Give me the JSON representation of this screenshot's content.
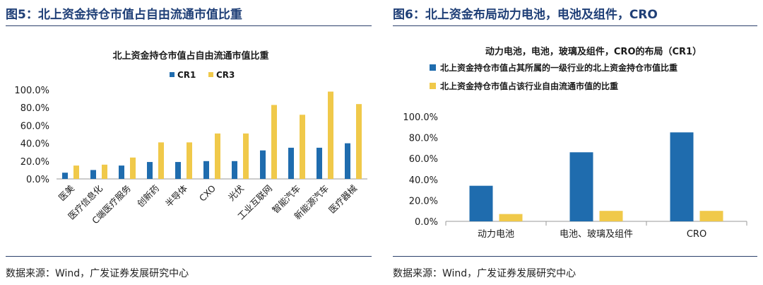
{
  "left": {
    "fig_title": "图5：北上资金持仓市值占自由流通市值比重",
    "source": "数据来源：Wind，广发证券发展研究中心"
  },
  "right": {
    "fig_title": "图6：北上资金布局动力电池，电池及组件，CRO",
    "source": "数据来源：Wind，广发证券发展研究中心"
  },
  "colors": {
    "blue": "#1f6cae",
    "gold": "#f0c94a",
    "navy": "#1f3f77"
  },
  "chart_data": [
    {
      "type": "bar",
      "title": "北上资金持仓市值占自由流通市值比重",
      "categories": [
        "医美",
        "医疗信息化",
        "C端医疗服务",
        "创新药",
        "半导体",
        "CXO",
        "光伏",
        "工业互联网",
        "智能汽车",
        "新能源汽车",
        "医疗器械"
      ],
      "series": [
        {
          "name": "CR1",
          "color": "#1f6cae",
          "values": [
            7,
            10,
            15,
            19,
            19,
            20,
            20,
            32,
            35,
            35,
            40
          ]
        },
        {
          "name": "CR3",
          "color": "#f0c94a",
          "values": [
            15,
            16,
            24,
            41,
            41,
            51,
            51,
            83,
            72,
            98,
            84
          ]
        }
      ],
      "yticks": [
        "0.0%",
        "20.0%",
        "40.0%",
        "60.0%",
        "80.0%",
        "100.0%"
      ],
      "ylim": [
        0,
        100
      ],
      "legend": "top",
      "grid": false
    },
    {
      "type": "bar",
      "title": "动力电池，电池，玻璃及组件，CRO的布局（CR1）",
      "categories": [
        "动力电池",
        "电池、玻璃及组件",
        "CRO"
      ],
      "series": [
        {
          "name": "北上资金持仓市值占其所属的一级行业的北上资金持仓市值比重",
          "color": "#1f6cae",
          "values": [
            34,
            66,
            85
          ]
        },
        {
          "name": "北上资金持仓市值占该行业自由流通市值的比重",
          "color": "#f0c94a",
          "values": [
            7,
            10,
            10
          ]
        }
      ],
      "yticks": [
        "0.0%",
        "20.0%",
        "40.0%",
        "60.0%",
        "80.0%",
        "100.0%"
      ],
      "ylim": [
        0,
        100
      ],
      "legend": "top-left",
      "grid": false
    }
  ]
}
